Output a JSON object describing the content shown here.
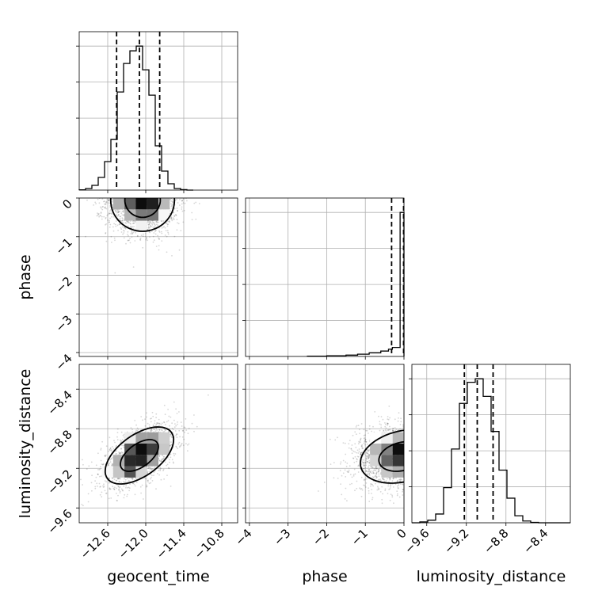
{
  "chart_data": {
    "type": "corner",
    "parameters": [
      "geocent_time",
      "phase",
      "luminosity_distance"
    ],
    "axis_labels": {
      "geocent_time": "geocent_time",
      "phase": "phase",
      "luminosity_distance": "luminosity_distance"
    },
    "ranges": {
      "geocent_time": [
        -13.05,
        -10.55
      ],
      "phase": [
        -4.1,
        0.0
      ],
      "luminosity_distance": [
        -9.75,
        -8.15
      ]
    },
    "ticks": {
      "geocent_time": [
        {
          "value": -12.6,
          "label": "−12.6"
        },
        {
          "value": -12.0,
          "label": "−12.0"
        },
        {
          "value": -11.4,
          "label": "−11.4"
        },
        {
          "value": -10.8,
          "label": "−10.8"
        }
      ],
      "phase": [
        {
          "value": -4,
          "label": "−4"
        },
        {
          "value": -3,
          "label": "−3"
        },
        {
          "value": -2,
          "label": "−2"
        },
        {
          "value": -1,
          "label": "−1"
        },
        {
          "value": 0,
          "label": "0"
        }
      ],
      "luminosity_distance": [
        {
          "value": -9.6,
          "label": "−9.6"
        },
        {
          "value": -9.2,
          "label": "−9.2"
        },
        {
          "value": -8.8,
          "label": "−8.8"
        },
        {
          "value": -8.4,
          "label": "−8.4"
        }
      ]
    },
    "histograms": {
      "geocent_time": {
        "bin_edges": [
          -13.05,
          -12.95,
          -12.85,
          -12.75,
          -12.65,
          -12.55,
          -12.45,
          -12.35,
          -12.25,
          -12.15,
          -12.05,
          -11.95,
          -11.85,
          -11.75,
          -11.65,
          -11.55,
          -11.45,
          -11.35,
          -11.25
        ],
        "counts": [
          0.2,
          1.0,
          3.0,
          8.0,
          18.0,
          32.0,
          62.0,
          80.0,
          88.0,
          91.0,
          76.0,
          60.0,
          28.0,
          12.0,
          4.0,
          1.0,
          0.3,
          0.0
        ],
        "quantiles": [
          -12.46,
          -12.1,
          -11.78
        ]
      },
      "phase": {
        "bin_edges": [
          -2.5,
          -2.0,
          -1.5,
          -1.2,
          -0.9,
          -0.6,
          -0.4,
          -0.3,
          -0.1,
          0.0
        ],
        "counts": [
          0.3,
          0.8,
          1.5,
          2.5,
          4.0,
          6.0,
          8.0,
          10.0,
          160.0
        ],
        "quantiles": [
          -0.32,
          -0.01
        ]
      },
      "luminosity_distance": {
        "bin_edges": [
          -9.75,
          -9.67,
          -9.59,
          -9.51,
          -9.43,
          -9.35,
          -9.27,
          -9.19,
          -9.11,
          -9.03,
          -8.95,
          -8.87,
          -8.79,
          -8.71,
          -8.63,
          -8.55,
          -8.47,
          -8.39,
          -8.31,
          -8.23,
          -8.15
        ],
        "counts": [
          0.0,
          0.5,
          1.5,
          5.0,
          20.0,
          42.0,
          68.0,
          80.0,
          82.0,
          72.0,
          52.0,
          30.0,
          14.0,
          4.0,
          1.0,
          0.2,
          0.0,
          0.0,
          0.0,
          0.0
        ],
        "quantiles": [
          -9.22,
          -9.09,
          -8.93
        ]
      }
    },
    "joint": {
      "geocent_time|phase": {
        "x_center": -12.05,
        "y_center": -0.05,
        "x_sd": 0.28,
        "y_sd": 0.45,
        "correlation": 0.0,
        "y_max": 0.0,
        "samples": 1500
      },
      "geocent_time|luminosity_distance": {
        "x_center": -12.1,
        "y_center": -9.07,
        "x_sd": 0.3,
        "y_sd": 0.16,
        "correlation": 0.55,
        "samples": 1700
      },
      "phase|luminosity_distance": {
        "x_center": -0.05,
        "y_center": -9.08,
        "x_sd": 0.6,
        "y_sd": 0.15,
        "correlation": 0.25,
        "x_max": 0.0,
        "samples": 1500
      }
    },
    "grid": true,
    "quantile_lines": "dashed"
  }
}
